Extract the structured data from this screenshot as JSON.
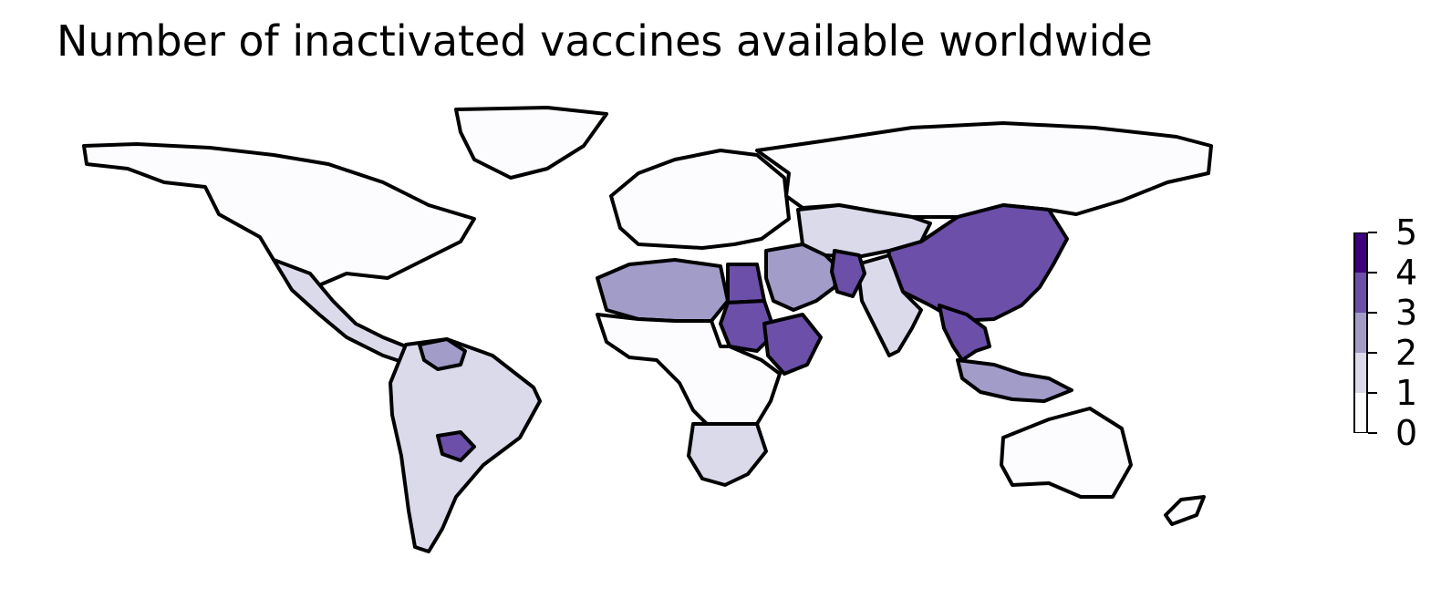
{
  "title": "Number of inactivated vaccines available worldwide",
  "colorbar": {
    "ticks": [
      "0",
      "1",
      "2",
      "3",
      "4",
      "5"
    ],
    "bins": [
      {
        "range": [
          0,
          1
        ],
        "color": "#fcfbfd"
      },
      {
        "range": [
          1,
          2
        ],
        "color": "#dadaeb"
      },
      {
        "range": [
          2,
          3
        ],
        "color": "#a29cc9"
      },
      {
        "range": [
          3,
          4
        ],
        "color": "#6b4fa8"
      },
      {
        "range": [
          4,
          5
        ],
        "color": "#3f007d"
      }
    ]
  },
  "chart_data": {
    "type": "choropleth",
    "title": "Number of inactivated vaccines available worldwide",
    "value_range": [
      0,
      5
    ],
    "colormap": "Purples",
    "regions": [
      {
        "name": "North America",
        "value": 0
      },
      {
        "name": "Greenland",
        "value": 0
      },
      {
        "name": "Mexico & Central America",
        "value": 1
      },
      {
        "name": "South America",
        "value": 1
      },
      {
        "name": "Venezuela",
        "value": 2
      },
      {
        "name": "Paraguay",
        "value": 3
      },
      {
        "name": "Europe",
        "value": 0
      },
      {
        "name": "Russia",
        "value": 0
      },
      {
        "name": "Central Asia",
        "value": 1
      },
      {
        "name": "Middle East",
        "value": 2
      },
      {
        "name": "China",
        "value": 3
      },
      {
        "name": "South Asia",
        "value": 1
      },
      {
        "name": "Pakistan",
        "value": 3
      },
      {
        "name": "Southeast Asia",
        "value": 3
      },
      {
        "name": "Maritime Southeast Asia",
        "value": 2
      },
      {
        "name": "North Africa",
        "value": 2
      },
      {
        "name": "Egypt",
        "value": 3
      },
      {
        "name": "Sudan",
        "value": 3
      },
      {
        "name": "Ethiopia",
        "value": 3
      },
      {
        "name": "Sub-Saharan Africa",
        "value": 0
      },
      {
        "name": "Southern Africa",
        "value": 1
      },
      {
        "name": "Australia",
        "value": 0
      },
      {
        "name": "New Zealand",
        "value": 0
      }
    ]
  }
}
